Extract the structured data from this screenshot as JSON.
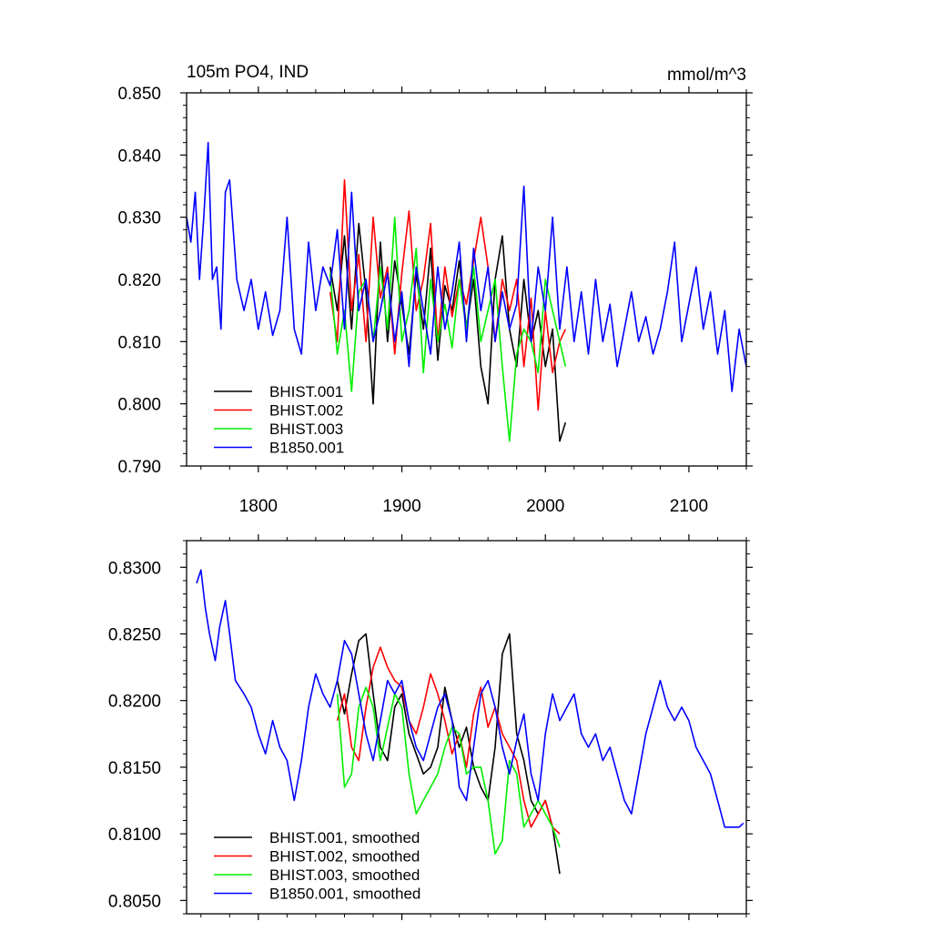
{
  "chart_data": [
    {
      "type": "line",
      "title": "105m PO4, IND",
      "units_label": "mmol/m^3",
      "xlim": [
        1750,
        2140
      ],
      "ylim": [
        0.79,
        0.85
      ],
      "x_ticks": [
        1800,
        1900,
        2000,
        2100
      ],
      "x_tick_labels": [
        "1800",
        "1900",
        "2000",
        "2100"
      ],
      "y_ticks": [
        0.79,
        0.8,
        0.81,
        0.82,
        0.83,
        0.84,
        0.85
      ],
      "y_tick_labels": [
        "0.790",
        "0.800",
        "0.810",
        "0.820",
        "0.830",
        "0.840",
        "0.850"
      ],
      "legend_position": "bottom-left",
      "series": [
        {
          "name": "BHIST.001",
          "color": "#000000",
          "x": [
            1850,
            1855,
            1860,
            1865,
            1870,
            1875,
            1880,
            1885,
            1890,
            1895,
            1900,
            1905,
            1910,
            1915,
            1920,
            1925,
            1930,
            1935,
            1940,
            1945,
            1950,
            1955,
            1960,
            1965,
            1970,
            1975,
            1980,
            1985,
            1990,
            1995,
            2000,
            2005,
            2010,
            2014
          ],
          "y": [
            0.822,
            0.815,
            0.827,
            0.812,
            0.829,
            0.818,
            0.8,
            0.826,
            0.81,
            0.823,
            0.816,
            0.808,
            0.821,
            0.812,
            0.825,
            0.807,
            0.819,
            0.815,
            0.823,
            0.812,
            0.82,
            0.806,
            0.8,
            0.82,
            0.827,
            0.812,
            0.806,
            0.82,
            0.81,
            0.815,
            0.806,
            0.812,
            0.794,
            0.797
          ]
        },
        {
          "name": "BHIST.002",
          "color": "#ff0000",
          "x": [
            1850,
            1855,
            1860,
            1865,
            1870,
            1875,
            1880,
            1885,
            1890,
            1895,
            1900,
            1905,
            1910,
            1915,
            1920,
            1925,
            1930,
            1935,
            1940,
            1945,
            1950,
            1955,
            1960,
            1965,
            1970,
            1975,
            1980,
            1985,
            1990,
            1995,
            2000,
            2005,
            2010,
            2014
          ],
          "y": [
            0.818,
            0.81,
            0.836,
            0.815,
            0.824,
            0.81,
            0.83,
            0.817,
            0.822,
            0.808,
            0.821,
            0.831,
            0.815,
            0.82,
            0.829,
            0.81,
            0.822,
            0.814,
            0.82,
            0.816,
            0.823,
            0.83,
            0.822,
            0.81,
            0.82,
            0.815,
            0.82,
            0.806,
            0.817,
            0.799,
            0.815,
            0.805,
            0.81,
            0.812
          ]
        },
        {
          "name": "BHIST.003",
          "color": "#00ee00",
          "x": [
            1850,
            1855,
            1860,
            1865,
            1870,
            1875,
            1880,
            1885,
            1890,
            1895,
            1900,
            1905,
            1910,
            1915,
            1920,
            1925,
            1930,
            1935,
            1940,
            1945,
            1950,
            1955,
            1960,
            1965,
            1970,
            1975,
            1980,
            1985,
            1990,
            1995,
            2000,
            2005,
            2010,
            2014
          ],
          "y": [
            0.821,
            0.808,
            0.815,
            0.802,
            0.818,
            0.82,
            0.81,
            0.822,
            0.812,
            0.83,
            0.81,
            0.815,
            0.825,
            0.805,
            0.82,
            0.81,
            0.816,
            0.809,
            0.82,
            0.812,
            0.822,
            0.81,
            0.815,
            0.82,
            0.806,
            0.794,
            0.808,
            0.812,
            0.81,
            0.805,
            0.82,
            0.815,
            0.81,
            0.806
          ]
        },
        {
          "name": "B1850.001",
          "color": "#0000ff",
          "x": [
            1750,
            1753,
            1756,
            1759,
            1762,
            1765,
            1768,
            1771,
            1774,
            1777,
            1780,
            1785,
            1790,
            1795,
            1800,
            1805,
            1810,
            1815,
            1820,
            1825,
            1830,
            1835,
            1840,
            1845,
            1850,
            1855,
            1860,
            1865,
            1870,
            1875,
            1880,
            1885,
            1890,
            1895,
            1900,
            1905,
            1910,
            1915,
            1920,
            1925,
            1930,
            1935,
            1940,
            1945,
            1950,
            1955,
            1960,
            1965,
            1970,
            1975,
            1980,
            1985,
            1990,
            1995,
            2000,
            2005,
            2010,
            2015,
            2020,
            2025,
            2030,
            2035,
            2040,
            2045,
            2050,
            2055,
            2060,
            2065,
            2070,
            2075,
            2080,
            2085,
            2090,
            2095,
            2100,
            2105,
            2110,
            2115,
            2120,
            2125,
            2130,
            2135,
            2140
          ],
          "y": [
            0.83,
            0.826,
            0.834,
            0.82,
            0.83,
            0.842,
            0.82,
            0.822,
            0.812,
            0.834,
            0.836,
            0.82,
            0.815,
            0.82,
            0.812,
            0.818,
            0.811,
            0.815,
            0.83,
            0.812,
            0.808,
            0.826,
            0.815,
            0.822,
            0.819,
            0.828,
            0.812,
            0.834,
            0.815,
            0.82,
            0.81,
            0.815,
            0.821,
            0.81,
            0.818,
            0.806,
            0.822,
            0.815,
            0.808,
            0.822,
            0.812,
            0.818,
            0.826,
            0.81,
            0.825,
            0.815,
            0.822,
            0.81,
            0.818,
            0.812,
            0.816,
            0.835,
            0.81,
            0.822,
            0.815,
            0.83,
            0.812,
            0.822,
            0.81,
            0.818,
            0.808,
            0.82,
            0.81,
            0.816,
            0.806,
            0.812,
            0.818,
            0.81,
            0.814,
            0.808,
            0.812,
            0.818,
            0.826,
            0.81,
            0.816,
            0.822,
            0.812,
            0.818,
            0.808,
            0.815,
            0.802,
            0.812,
            0.806
          ]
        }
      ]
    },
    {
      "type": "line",
      "xlim": [
        1750,
        2140
      ],
      "ylim": [
        0.804,
        0.832
      ],
      "x_ticks": [
        1800,
        1900,
        2000,
        2100
      ],
      "x_tick_labels": [],
      "y_ticks": [
        0.805,
        0.81,
        0.815,
        0.82,
        0.825,
        0.83
      ],
      "y_tick_labels": [
        "0.8050",
        "0.8100",
        "0.8150",
        "0.8200",
        "0.8250",
        "0.8300"
      ],
      "legend_position": "bottom-left",
      "series": [
        {
          "name": "BHIST.001, smoothed",
          "color": "#000000",
          "x": [
            1855,
            1860,
            1865,
            1870,
            1875,
            1880,
            1885,
            1890,
            1895,
            1900,
            1905,
            1910,
            1915,
            1920,
            1925,
            1930,
            1935,
            1940,
            1945,
            1950,
            1955,
            1960,
            1965,
            1970,
            1975,
            1980,
            1985,
            1990,
            1995,
            2000,
            2005,
            2010
          ],
          "y": [
            0.8215,
            0.819,
            0.822,
            0.8245,
            0.825,
            0.8205,
            0.8165,
            0.8155,
            0.8195,
            0.8205,
            0.8175,
            0.816,
            0.8145,
            0.815,
            0.8165,
            0.821,
            0.8185,
            0.8165,
            0.818,
            0.815,
            0.8135,
            0.8125,
            0.8165,
            0.8235,
            0.825,
            0.8175,
            0.8155,
            0.8125,
            0.8115,
            0.8125,
            0.8105,
            0.807
          ]
        },
        {
          "name": "BHIST.002, smoothed",
          "color": "#ff0000",
          "x": [
            1855,
            1860,
            1865,
            1870,
            1875,
            1880,
            1885,
            1890,
            1895,
            1900,
            1905,
            1910,
            1915,
            1920,
            1925,
            1930,
            1935,
            1940,
            1945,
            1950,
            1955,
            1960,
            1965,
            1970,
            1975,
            1980,
            1985,
            1990,
            1995,
            2000,
            2005,
            2010
          ],
          "y": [
            0.8185,
            0.8205,
            0.8165,
            0.8155,
            0.8195,
            0.8225,
            0.824,
            0.8225,
            0.8215,
            0.821,
            0.8185,
            0.8175,
            0.8195,
            0.822,
            0.8205,
            0.8185,
            0.816,
            0.8175,
            0.815,
            0.819,
            0.821,
            0.818,
            0.8195,
            0.8175,
            0.8165,
            0.8155,
            0.8125,
            0.8105,
            0.8115,
            0.8125,
            0.8105,
            0.81
          ]
        },
        {
          "name": "BHIST.003, smoothed",
          "color": "#00ee00",
          "x": [
            1855,
            1860,
            1865,
            1870,
            1875,
            1880,
            1885,
            1890,
            1895,
            1900,
            1905,
            1910,
            1915,
            1920,
            1925,
            1930,
            1935,
            1940,
            1945,
            1950,
            1955,
            1960,
            1965,
            1970,
            1975,
            1980,
            1985,
            1990,
            1995,
            2000,
            2005,
            2010
          ],
          "y": [
            0.8205,
            0.8135,
            0.8145,
            0.8195,
            0.821,
            0.8195,
            0.8155,
            0.818,
            0.8205,
            0.8195,
            0.8145,
            0.8115,
            0.8125,
            0.8135,
            0.8145,
            0.8165,
            0.818,
            0.8175,
            0.8145,
            0.815,
            0.815,
            0.8125,
            0.8085,
            0.8095,
            0.8155,
            0.8145,
            0.8105,
            0.8115,
            0.8125,
            0.8115,
            0.8105,
            0.809
          ]
        },
        {
          "name": "B1850.001, smoothed",
          "color": "#0000ff",
          "x": [
            1757,
            1760,
            1763,
            1766,
            1770,
            1773,
            1777,
            1780,
            1784,
            1790,
            1795,
            1800,
            1805,
            1810,
            1815,
            1820,
            1825,
            1830,
            1835,
            1840,
            1845,
            1850,
            1855,
            1860,
            1865,
            1870,
            1875,
            1880,
            1885,
            1890,
            1895,
            1900,
            1905,
            1910,
            1915,
            1920,
            1925,
            1930,
            1935,
            1940,
            1945,
            1950,
            1955,
            1960,
            1965,
            1970,
            1975,
            1980,
            1985,
            1990,
            1995,
            2000,
            2005,
            2010,
            2015,
            2020,
            2025,
            2030,
            2035,
            2040,
            2045,
            2050,
            2055,
            2060,
            2065,
            2070,
            2075,
            2080,
            2085,
            2090,
            2095,
            2100,
            2105,
            2110,
            2115,
            2120,
            2125,
            2130,
            2135,
            2138
          ],
          "y": [
            0.8288,
            0.8298,
            0.827,
            0.825,
            0.823,
            0.8255,
            0.8275,
            0.825,
            0.8215,
            0.8205,
            0.8195,
            0.8175,
            0.816,
            0.8185,
            0.8165,
            0.8155,
            0.8125,
            0.8155,
            0.8195,
            0.822,
            0.8205,
            0.8195,
            0.8215,
            0.8245,
            0.8235,
            0.8205,
            0.8175,
            0.8155,
            0.8185,
            0.8215,
            0.8205,
            0.8215,
            0.8185,
            0.8165,
            0.8155,
            0.8175,
            0.8195,
            0.8205,
            0.8185,
            0.8135,
            0.8125,
            0.8165,
            0.8205,
            0.8215,
            0.8195,
            0.8165,
            0.8145,
            0.817,
            0.819,
            0.8145,
            0.8125,
            0.8175,
            0.8205,
            0.8185,
            0.8195,
            0.8205,
            0.8175,
            0.8165,
            0.8175,
            0.8155,
            0.8165,
            0.8145,
            0.8125,
            0.8115,
            0.8145,
            0.8175,
            0.8195,
            0.8215,
            0.8195,
            0.8185,
            0.8195,
            0.8185,
            0.8165,
            0.8155,
            0.8145,
            0.8125,
            0.8105,
            0.8105,
            0.8105,
            0.8108
          ]
        }
      ]
    }
  ]
}
